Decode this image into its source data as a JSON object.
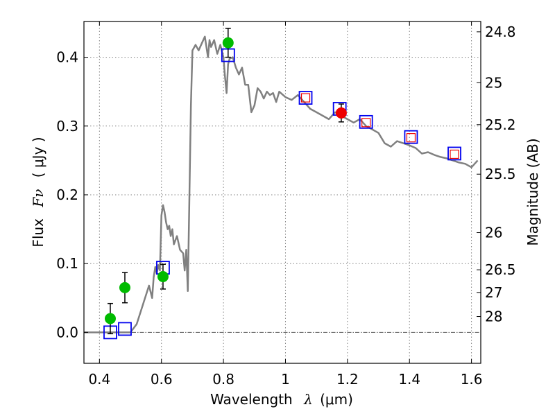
{
  "chart_data": {
    "type": "scatter",
    "xlabel": "Wavelength",
    "xlabel_symbol": "λ",
    "xlabel_unit": "(μm)",
    "ylabel": "Flux",
    "ylabel_symbol": "Fν",
    "ylabel_unit": "( μJy )",
    "ylabel_right": "Magnitude (AB)",
    "xlim": [
      0.35,
      1.63
    ],
    "ylim": [
      -0.045,
      0.452
    ],
    "grid": true,
    "x_ticks": [
      0.4,
      0.6,
      0.8,
      1.0,
      1.2,
      1.4,
      1.6
    ],
    "x_tick_labels": [
      "0.4",
      "0.6",
      "0.8",
      "1",
      "1.2",
      "1.4",
      "1.6"
    ],
    "y_ticks": [
      0.0,
      0.1,
      0.2,
      0.3,
      0.4
    ],
    "y_tick_labels": [
      "0.0",
      "0.1",
      "0.2",
      "0.3",
      "0.4"
    ],
    "right_ticks": [
      {
        "flux": 0.437,
        "label": "24.8"
      },
      {
        "flux": 0.363,
        "label": "25"
      },
      {
        "flux": 0.302,
        "label": "25.2"
      },
      {
        "flux": 0.23,
        "label": "25.5"
      },
      {
        "flux": 0.145,
        "label": "26"
      },
      {
        "flux": 0.091,
        "label": "26.5"
      },
      {
        "flux": 0.058,
        "label": "27"
      },
      {
        "flux": 0.023,
        "label": "28"
      }
    ],
    "series": [
      {
        "name": "model spectrum",
        "kind": "line",
        "color": "#808080",
        "x": [
          0.35,
          0.5,
          0.52,
          0.54,
          0.56,
          0.57,
          0.575,
          0.58,
          0.585,
          0.59,
          0.595,
          0.6,
          0.605,
          0.61,
          0.615,
          0.62,
          0.625,
          0.63,
          0.635,
          0.64,
          0.65,
          0.66,
          0.67,
          0.675,
          0.68,
          0.685,
          0.69,
          0.695,
          0.7,
          0.71,
          0.72,
          0.73,
          0.74,
          0.75,
          0.755,
          0.76,
          0.77,
          0.78,
          0.79,
          0.8,
          0.805,
          0.81,
          0.815,
          0.82,
          0.83,
          0.84,
          0.85,
          0.86,
          0.87,
          0.88,
          0.89,
          0.9,
          0.91,
          0.92,
          0.93,
          0.94,
          0.95,
          0.96,
          0.97,
          0.98,
          1.0,
          1.02,
          1.04,
          1.06,
          1.08,
          1.1,
          1.12,
          1.14,
          1.16,
          1.18,
          1.2,
          1.22,
          1.24,
          1.26,
          1.28,
          1.3,
          1.32,
          1.34,
          1.36,
          1.38,
          1.4,
          1.42,
          1.44,
          1.46,
          1.48,
          1.5,
          1.52,
          1.54,
          1.56,
          1.58,
          1.6,
          1.62
        ],
        "y": [
          0.0,
          0.0,
          0.012,
          0.04,
          0.068,
          0.05,
          0.08,
          0.095,
          0.085,
          0.098,
          0.09,
          0.17,
          0.185,
          0.175,
          0.16,
          0.15,
          0.155,
          0.14,
          0.15,
          0.128,
          0.14,
          0.12,
          0.115,
          0.09,
          0.12,
          0.06,
          0.19,
          0.33,
          0.41,
          0.418,
          0.41,
          0.42,
          0.43,
          0.4,
          0.425,
          0.415,
          0.425,
          0.405,
          0.418,
          0.4,
          0.372,
          0.348,
          0.39,
          0.398,
          0.4,
          0.385,
          0.375,
          0.385,
          0.36,
          0.36,
          0.32,
          0.33,
          0.355,
          0.35,
          0.34,
          0.35,
          0.345,
          0.348,
          0.335,
          0.35,
          0.342,
          0.338,
          0.345,
          0.335,
          0.325,
          0.32,
          0.315,
          0.31,
          0.32,
          0.315,
          0.31,
          0.305,
          0.31,
          0.3,
          0.295,
          0.29,
          0.275,
          0.27,
          0.278,
          0.275,
          0.272,
          0.268,
          0.26,
          0.262,
          0.258,
          0.255,
          0.253,
          0.25,
          0.247,
          0.245,
          0.24,
          0.25
        ]
      },
      {
        "name": "observed (green)",
        "kind": "marker-circle",
        "color": "#00bb00",
        "x": [
          0.435,
          0.482,
          0.605,
          0.815
        ],
        "y": [
          0.02,
          0.065,
          0.081,
          0.421
        ],
        "err": [
          0.022,
          0.022,
          0.018,
          0.021
        ]
      },
      {
        "name": "observed (red)",
        "kind": "marker-circle",
        "color": "#ee0000",
        "x": [
          1.18
        ],
        "y": [
          0.319
        ],
        "err": [
          0.013
        ]
      },
      {
        "name": "model bandpass (blue squares)",
        "kind": "marker-square",
        "color": "#0000ee",
        "x": [
          0.435,
          0.482,
          0.605,
          0.815,
          1.065,
          1.175,
          1.26,
          1.405,
          1.545
        ],
        "y": [
          0.0,
          0.005,
          0.094,
          0.403,
          0.341,
          0.325,
          0.306,
          0.284,
          0.26
        ]
      },
      {
        "name": "model bandpass (red squares)",
        "kind": "marker-square-small",
        "color": "#ee0000",
        "x": [
          1.065,
          1.26,
          1.405,
          1.545
        ],
        "y": [
          0.341,
          0.305,
          0.283,
          0.259
        ]
      }
    ]
  }
}
